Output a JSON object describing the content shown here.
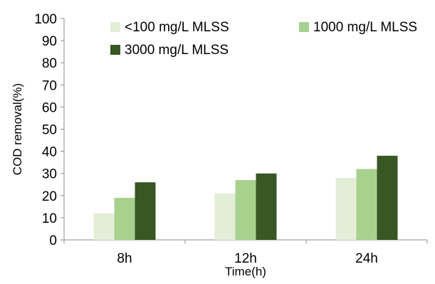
{
  "chart_data": {
    "type": "bar",
    "categories": [
      "8h",
      "12h",
      "24h"
    ],
    "series": [
      {
        "name": "<100 mg/L MLSS",
        "values": [
          12,
          21,
          28
        ],
        "color": "#e2eed8"
      },
      {
        "name": "1000 mg/L MLSS",
        "values": [
          19,
          27,
          32
        ],
        "color": "#a9d18e"
      },
      {
        "name": "3000 mg/L MLSS",
        "values": [
          26,
          30,
          38
        ],
        "color": "#385723"
      }
    ],
    "title": "",
    "xlabel": "Time(h)",
    "ylabel": "COD removal(%)",
    "ylim": [
      0,
      100
    ],
    "yticks": [
      0,
      10,
      20,
      30,
      40,
      50,
      60,
      70,
      80,
      90,
      100
    ],
    "grid": false,
    "legend_position": "top"
  }
}
